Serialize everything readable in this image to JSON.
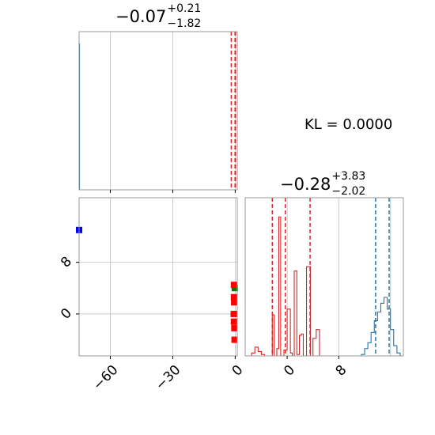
{
  "kl_text": "KL = 0.0000",
  "titles": {
    "param1": {
      "center": "−0.07",
      "plus": "+0.21",
      "minus": "−1.82"
    },
    "param2": {
      "center": "−0.28",
      "plus": "+3.83",
      "minus": "−2.02"
    }
  },
  "colors": {
    "red": "#d62728",
    "blue": "#1f77b4",
    "scatter_red": "#ff0000",
    "scatter_blue": "#0000ff",
    "scatter_green": "#008000",
    "grid": "#bfbfbf",
    "frame": "#999999"
  },
  "chart_data": [
    {
      "type": "area",
      "panel": "param1-marginal",
      "title": "−0.07 +0.21 −1.82",
      "xlim": [
        -75,
        1
      ],
      "grid": true,
      "quantile_lines_red": [
        -1.89,
        -0.07,
        0.14
      ]
    },
    {
      "type": "scatter",
      "panel": "joint",
      "xlim": [
        -75,
        1
      ],
      "ylim": [
        -6.5,
        18
      ],
      "x_ticks": [
        -60,
        -30,
        0
      ],
      "x_tick_labels": [
        "−60",
        "−30",
        "0"
      ],
      "y_ticks": [
        0,
        8
      ],
      "y_tick_labels": [
        "0",
        "8"
      ],
      "grid": true,
      "series": [
        {
          "color": "blue",
          "points": [
            [
              -75,
              13.0
            ]
          ]
        },
        {
          "color": "green",
          "points": [
            [
              -0.2,
              4.0
            ]
          ]
        },
        {
          "color": "red",
          "points": [
            [
              -0.6,
              4.5
            ],
            [
              -0.6,
              2.6
            ],
            [
              -0.5,
              1.8
            ],
            [
              -0.7,
              0.0
            ],
            [
              -0.6,
              -1.2
            ],
            [
              -0.4,
              -2.2
            ],
            [
              -0.3,
              -4.0
            ]
          ]
        }
      ]
    },
    {
      "type": "line",
      "panel": "param2-marginal",
      "title": "−0.28 +3.83 −2.02",
      "xlim": [
        -6.5,
        18
      ],
      "x_ticks": [
        0,
        8
      ],
      "x_tick_labels": [
        "0",
        "8"
      ],
      "grid": true,
      "series": [
        {
          "color": "red",
          "x": [
            -5.5,
            -5.0,
            -4.5,
            -4.0,
            -3.5,
            -2.3,
            -2.0,
            -1.6,
            -1.3,
            -1.0,
            -0.5,
            0.0,
            0.5,
            0.8,
            1.1,
            1.5,
            1.9,
            2.2,
            2.5,
            3.0,
            3.6,
            4.0,
            4.5,
            5.0,
            6.0
          ],
          "y": [
            0.02,
            0.06,
            0.03,
            0.01,
            0.0,
            0.28,
            0.0,
            0.05,
            0.95,
            0.0,
            0.04,
            0.32,
            0.02,
            0.0,
            0.58,
            0.01,
            0.14,
            0.15,
            0.0,
            0.61,
            0.0,
            0.12,
            0.18,
            0.0,
            0.0
          ]
        },
        {
          "color": "blue",
          "x": [
            11.0,
            11.5,
            12.0,
            12.5,
            13.0,
            13.5,
            14.0,
            14.5,
            15.0,
            15.5,
            16.0,
            16.5,
            17.0,
            17.5
          ],
          "y": [
            0.0,
            0.01,
            0.05,
            0.09,
            0.16,
            0.24,
            0.3,
            0.36,
            0.4,
            0.32,
            0.18,
            0.07,
            0.02,
            0.0
          ]
        }
      ],
      "quantile_lines_red": [
        -2.3,
        -0.28,
        3.55
      ],
      "quantile_lines_blue": [
        13.7,
        15.8
      ]
    }
  ]
}
